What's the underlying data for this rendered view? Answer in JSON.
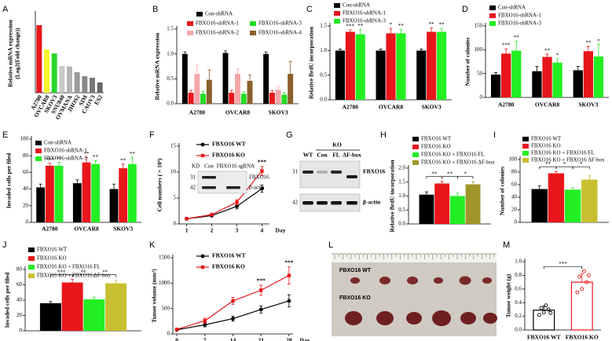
{
  "chart_data": [
    {
      "type": "bar",
      "panel": "A",
      "ylabel": [
        "Relative mRNA expression",
        "(Log2(Fold change))"
      ],
      "categories": [
        "A2780",
        "OVCAR8",
        "SKOV3",
        "SNU840",
        "OVMANA",
        "JHOS2",
        "SIM",
        "CAOV3",
        "ES2"
      ],
      "values": [
        1.72,
        1.1,
        1.0,
        0.68,
        0.67,
        0.52,
        0.42,
        0.38,
        0.26
      ],
      "colors": [
        "#e8161b",
        "#f5f52a",
        "#2bd62b",
        "#c8c8c8",
        "#b4b4b4",
        "#9a9a9a",
        "#888888",
        "#777777",
        "#666666"
      ],
      "ylim": [
        0,
        2
      ]
    },
    {
      "type": "bar",
      "panel": "B",
      "ylabel": "Relative mRNA expression",
      "categories": [
        "A2780",
        "OVCAR8",
        "SKOV3"
      ],
      "ylim": [
        0,
        1.5
      ],
      "yticks": [
        {
          "value": 0,
          "label": "0.0"
        },
        0.5,
        {
          "value": 1,
          "label": "1.0"
        },
        1.5
      ],
      "series": [
        {
          "name": "Con-shRNA",
          "color": "#000000",
          "values": [
            1.0,
            1.02,
            1.0
          ],
          "errors": [
            0.04,
            0.04,
            0.04
          ]
        },
        {
          "name": "FBXO16-shRNA-1",
          "color": "#e8161b",
          "values": [
            0.22,
            0.22,
            0.22
          ],
          "errors": [
            0.05,
            0.05,
            0.04
          ]
        },
        {
          "name": "FBXO16-shRNA-2",
          "color": "#f4a7a9",
          "values": [
            0.6,
            0.6,
            0.28
          ],
          "errors": [
            0.18,
            0.1,
            0.06
          ]
        },
        {
          "name": "FBXO16-shRNA-3",
          "color": "#22dd22",
          "values": [
            0.2,
            0.2,
            0.18
          ],
          "errors": [
            0.05,
            0.04,
            0.04
          ]
        },
        {
          "name": "FBXO16-shRNA-4",
          "color": "#8b5e2b",
          "values": [
            0.48,
            0.46,
            0.6
          ],
          "errors": [
            0.2,
            0.12,
            0.25
          ]
        }
      ]
    },
    {
      "type": "bar",
      "panel": "C",
      "ylabel": "Relative BrdU incorporation",
      "categories": [
        "A2780",
        "OVCAR8",
        "SKOV3"
      ],
      "ylim": [
        0,
        1.5
      ],
      "yticks": [
        {
          "value": 0,
          "label": "0.0"
        },
        0.5,
        {
          "value": 1,
          "label": "1.0"
        },
        1.5
      ],
      "series": [
        {
          "name": "Con-shRNA",
          "color": "#000000",
          "values": [
            1.0,
            1.0,
            1.0
          ],
          "errors": [
            0.03,
            0.03,
            0.03
          ]
        },
        {
          "name": "FBXO16-shRNA-1",
          "color": "#e8161b",
          "values": [
            1.38,
            1.35,
            1.38
          ],
          "errors": [
            0.04,
            0.1,
            0.08
          ]
        },
        {
          "name": "FBXO16-shRNA-3",
          "color": "#22ee22",
          "values": [
            1.33,
            1.35,
            1.38
          ],
          "errors": [
            0.1,
            0.08,
            0.07
          ],
          "labels2": null
        }
      ],
      "labels": [
        [
          "***",
          "*",
          "**"
        ],
        [
          "**",
          "**",
          "**"
        ]
      ]
    },
    {
      "type": "bar",
      "panel": "D",
      "ylabel": "Number of colonies",
      "categories": [
        "A2780",
        "OVCAR8",
        "SKOV3"
      ],
      "ylim": [
        0,
        150
      ],
      "yticks": [
        0,
        50,
        100,
        150
      ],
      "series": [
        {
          "name": "Con-shRNA",
          "color": "#000000",
          "values": [
            48,
            55,
            57
          ],
          "errors": [
            4,
            10,
            8
          ]
        },
        {
          "name": "FBXO16-shRNA-1",
          "color": "#e8161b",
          "values": [
            92,
            85,
            97
          ],
          "errors": [
            10,
            6,
            10
          ]
        },
        {
          "name": "FBXO16-shRNA-3",
          "color": "#22ee22",
          "values": [
            98,
            73,
            86
          ],
          "errors": [
            20,
            8,
            25
          ]
        }
      ],
      "labels": [
        [
          "***",
          "**",
          "**"
        ],
        [
          "**",
          "*",
          "*"
        ]
      ]
    },
    {
      "type": "bar",
      "panel": "E",
      "ylabel": "Invaded cells per filed",
      "categories": [
        "A2780",
        "OVCAR8",
        "SKOV3"
      ],
      "ylim": [
        0,
        100
      ],
      "yticks": [
        0,
        20,
        40,
        60,
        80,
        100
      ],
      "series": [
        {
          "name": "Con-shRNA",
          "color": "#000000",
          "values": [
            42,
            47,
            40
          ],
          "errors": [
            4,
            4,
            6
          ]
        },
        {
          "name": "FBXO16-shRNA-1",
          "color": "#e8161b",
          "values": [
            68,
            72,
            65
          ],
          "errors": [
            3,
            6,
            5
          ]
        },
        {
          "name": "FBXO16-shRNA-3",
          "color": "#22ee22",
          "values": [
            68,
            70,
            70
          ],
          "errors": [
            4,
            4,
            8
          ]
        }
      ],
      "labels": [
        [
          "***",
          "**",
          "**"
        ],
        [
          "**",
          "**",
          "**"
        ]
      ]
    },
    {
      "type": "line",
      "panel": "F",
      "ylabel": "Cell numbers ( × 10⁴)",
      "xlabel": "Day",
      "x": [
        1,
        2,
        3,
        4
      ],
      "xlim": [
        0.7,
        4.3
      ],
      "xticks": [
        1,
        2,
        3,
        4
      ],
      "ylim": [
        0,
        15
      ],
      "yticks": [
        0,
        5,
        10,
        15
      ],
      "series": [
        {
          "name": "FBXO16 WT",
          "color": "#000000",
          "marker": "circle",
          "values": [
            1.0,
            1.6,
            3.4,
            6.8
          ],
          "errors": [
            0.1,
            0.2,
            0.5,
            0.7
          ]
        },
        {
          "name": "FBXO16 KO",
          "color": "#e8161b",
          "marker": "square",
          "values": [
            1.0,
            1.8,
            4.2,
            10.2
          ],
          "errors": [
            0.1,
            0.2,
            0.5,
            0.9
          ]
        }
      ],
      "annotations": [
        {
          "text": "***",
          "x": 4
        }
      ],
      "inset": {
        "lead": "KD",
        "lanes": [
          "Con",
          "FBXO16 sgRNA"
        ],
        "markers": [
          "31",
          "42"
        ],
        "rows": [
          "FBXO16",
          "β-actin"
        ]
      }
    },
    {
      "type": "blot",
      "panel": "G",
      "group_label": "KO",
      "lanes": [
        "WT",
        "Con",
        "FL",
        "ΔF-box"
      ],
      "markers": [
        "31",
        "42"
      ],
      "rows": [
        "FBXO16",
        "β-actin"
      ]
    },
    {
      "type": "bar",
      "panel": "H",
      "ylabel": "Relative BrdU incorporation",
      "categories": [
        null
      ],
      "ylim": [
        0,
        2
      ],
      "yticks": [
        {
          "value": 0,
          "label": "0.0"
        },
        0.5,
        {
          "value": 1,
          "label": "1.0"
        },
        1.5,
        {
          "value": 2,
          "label": "2.0"
        }
      ],
      "series": [
        {
          "name": "FBXO16 WT",
          "color": "#000000",
          "values": [
            1.05
          ],
          "errors": [
            0.1
          ]
        },
        {
          "name": "FBXO16 KO",
          "color": "#e8161b",
          "values": [
            1.45
          ],
          "errors": [
            0.08
          ]
        },
        {
          "name": "FBXO16 KO + FBXO16 FL",
          "color": "#22ee22",
          "values": [
            1.0
          ],
          "errors": [
            0.1
          ]
        },
        {
          "name": "FBXO16 KO + FBXO16 ΔF-box",
          "color": "#a0962a",
          "values": [
            1.42
          ],
          "errors": [
            0.1
          ]
        }
      ],
      "comparisons": [
        "**",
        "**",
        "*"
      ]
    },
    {
      "type": "bar",
      "panel": "I",
      "ylabel": "Number of colonies",
      "categories": [
        null
      ],
      "ylim": [
        0,
        100
      ],
      "yticks": [
        0,
        20,
        40,
        60,
        80,
        100
      ],
      "series": [
        {
          "name": "FBXO16 WT",
          "color": "#000000",
          "values": [
            53
          ],
          "errors": [
            5
          ]
        },
        {
          "name": "FBXO16 KO",
          "color": "#e8161b",
          "values": [
            78
          ],
          "errors": [
            3
          ]
        },
        {
          "name": "FBXO16 KO + FBXO16 FL",
          "color": "#22ee22",
          "values": [
            52
          ],
          "errors": [
            3
          ]
        },
        {
          "name": "FBXO16 KO + FBXO16 ΔF-box",
          "color": "#c8c030",
          "values": [
            68
          ],
          "errors": [
            6
          ]
        }
      ],
      "comparisons": [
        "**",
        "*",
        "*"
      ]
    },
    {
      "type": "bar",
      "panel": "J",
      "ylabel": "Invaded cells per filed",
      "categories": [
        null
      ],
      "ylim": [
        0,
        80
      ],
      "yticks": [
        0,
        20,
        40,
        60,
        80
      ],
      "series": [
        {
          "name": "FBXO16 WT",
          "color": "#000000",
          "values": [
            36
          ],
          "errors": [
            2
          ]
        },
        {
          "name": "FBXO16 KO",
          "color": "#e8161b",
          "values": [
            63
          ],
          "errors": [
            4
          ]
        },
        {
          "name": "FBXO16 KO + FBXO16 FL",
          "color": "#22ee22",
          "values": [
            41
          ],
          "errors": [
            3
          ]
        },
        {
          "name": "FBXO16 KO + FBXO16 ΔF-box",
          "color": "#c8c030",
          "values": [
            62
          ],
          "errors": [
            4
          ]
        }
      ],
      "comparisons": [
        "***",
        "**",
        "**"
      ]
    },
    {
      "type": "line",
      "panel": "K",
      "ylabel": "Tumor volume (mm³)",
      "xlabel": "Day",
      "x": [
        0,
        7,
        14,
        21,
        28
      ],
      "xlim": [
        -1,
        29
      ],
      "xticks": [
        0,
        7,
        14,
        21,
        28
      ],
      "ylim": [
        0,
        1500
      ],
      "yticks": [
        0,
        500,
        1000,
        1500
      ],
      "series": [
        {
          "name": "FBXO16 WT",
          "color": "#000000",
          "marker": "circle",
          "values": [
            80,
            180,
            300,
            480,
            650
          ],
          "errors": [
            20,
            40,
            50,
            70,
            120
          ]
        },
        {
          "name": "FBXO16 KO",
          "color": "#e8161b",
          "marker": "square",
          "values": [
            90,
            260,
            650,
            860,
            1150
          ],
          "errors": [
            20,
            50,
            70,
            100,
            170
          ]
        }
      ],
      "annotations": [
        {
          "text": "***",
          "x": 21
        },
        {
          "text": "***",
          "x": 28
        }
      ]
    },
    {
      "type": "photo",
      "panel": "L",
      "labels": [
        "FBXO16 WT",
        "FBXO16 KO"
      ]
    },
    {
      "type": "bar",
      "panel": "M",
      "ylabel": "Tumor weight (g)",
      "categories": [
        "FBXO16 WT",
        "FBXO16 KO"
      ],
      "ylim": [
        0,
        1
      ],
      "yticks": [
        {
          "value": 0,
          "label": "0.0"
        },
        0.2,
        0.4,
        0.6,
        0.8,
        {
          "value": 1,
          "label": "1.0"
        }
      ],
      "values": [
        0.29,
        0.7
      ],
      "errors": [
        0.06,
        0.12
      ],
      "colors": [
        "#000000",
        "#e8161b"
      ],
      "outline": true,
      "points": [
        [
          0.22,
          0.26,
          0.3,
          0.32,
          0.36,
          0.25
        ],
        [
          0.55,
          0.6,
          0.7,
          0.78,
          0.86,
          0.8
        ]
      ],
      "comparisons": [
        "***"
      ]
    }
  ]
}
